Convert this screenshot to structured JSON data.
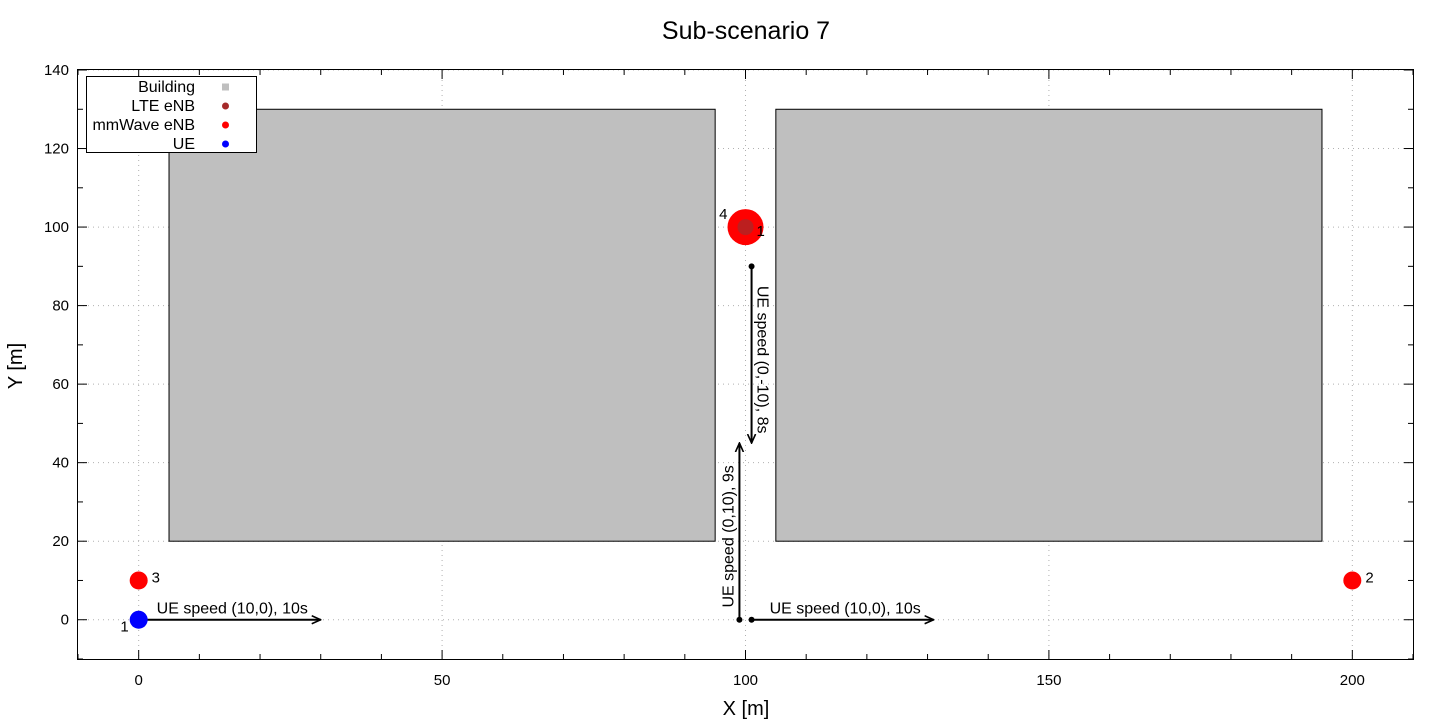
{
  "chart_data": {
    "type": "scatter",
    "title": "Sub-scenario 7",
    "xlabel": "X [m]",
    "ylabel": "Y [m]",
    "xlim": [
      -10,
      210
    ],
    "ylim": [
      -10,
      140
    ],
    "xticks": [
      0,
      50,
      100,
      150,
      200
    ],
    "yticks": [
      0,
      20,
      40,
      60,
      80,
      100,
      120,
      140
    ],
    "grid": true,
    "legend_position": "top-left",
    "legend": [
      {
        "label": "Building",
        "color": "#bfbfbf",
        "marker": "square"
      },
      {
        "label": "LTE eNB",
        "color": "#a52a2a",
        "marker": "circle"
      },
      {
        "label": "mmWave eNB",
        "color": "#ff0000",
        "marker": "circle"
      },
      {
        "label": "UE",
        "color": "#0000ff",
        "marker": "circle"
      }
    ],
    "buildings": [
      {
        "x0": 5,
        "y0": 20,
        "x1": 95,
        "y1": 130
      },
      {
        "x0": 105,
        "y0": 20,
        "x1": 195,
        "y1": 130
      }
    ],
    "lte_enbs": [
      {
        "id": "1",
        "x": 100,
        "y": 100
      }
    ],
    "mmwave_enbs": [
      {
        "id": "4",
        "x": 100,
        "y": 100,
        "large": true
      },
      {
        "id": "3",
        "x": 0,
        "y": 10
      },
      {
        "id": "2",
        "x": 200,
        "y": 10
      }
    ],
    "ues": [
      {
        "id": "1",
        "x": 0,
        "y": 0
      }
    ],
    "arrows": [
      {
        "from": [
          0,
          0
        ],
        "to": [
          30,
          0
        ],
        "label": "UE speed (10,0), 10s",
        "start_dot": false
      },
      {
        "from": [
          101,
          0
        ],
        "to": [
          131,
          0
        ],
        "label": "UE speed (10,0), 10s",
        "start_dot": true
      },
      {
        "from": [
          99,
          0
        ],
        "to": [
          99,
          45
        ],
        "label": "UE speed (0,10), 9s",
        "start_dot": true
      },
      {
        "from": [
          101,
          90
        ],
        "to": [
          101,
          45
        ],
        "label": "UE speed (0,-10), 8s",
        "start_dot": true
      }
    ]
  }
}
